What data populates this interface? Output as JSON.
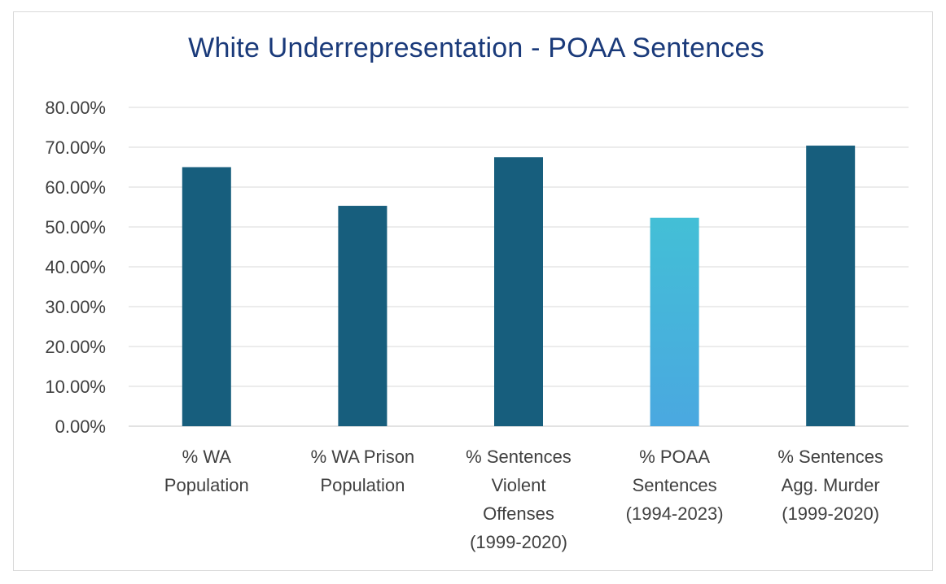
{
  "chart_data": {
    "type": "bar",
    "title": "White Underrepresentation - POAA Sentences",
    "categories": [
      [
        "% WA",
        "Population"
      ],
      [
        "% WA Prison",
        "Population"
      ],
      [
        "% Sentences",
        "Violent",
        "Offenses",
        "(1999-2020)"
      ],
      [
        "% POAA",
        "Sentences",
        "(1994-2023)"
      ],
      [
        "% Sentences",
        "Agg. Murder",
        "(1999-2020)"
      ]
    ],
    "values": [
      65.0,
      55.3,
      67.5,
      52.3,
      70.4
    ],
    "highlight_index": 3,
    "ylim": [
      0,
      80
    ],
    "y_ticks": [
      0,
      10,
      20,
      30,
      40,
      50,
      60,
      70,
      80
    ],
    "y_tick_labels": [
      "0.00%",
      "10.00%",
      "20.00%",
      "30.00%",
      "40.00%",
      "50.00%",
      "60.00%",
      "70.00%",
      "80.00%"
    ],
    "grid": true,
    "legend": "none",
    "colors": {
      "bar": "#175e7d",
      "highlight_top": "#43bfd6",
      "highlight_bottom": "#4aa8e0",
      "title": "#1a3a7a",
      "grid": "#d9d9d9",
      "axis_text": "#404040"
    }
  }
}
